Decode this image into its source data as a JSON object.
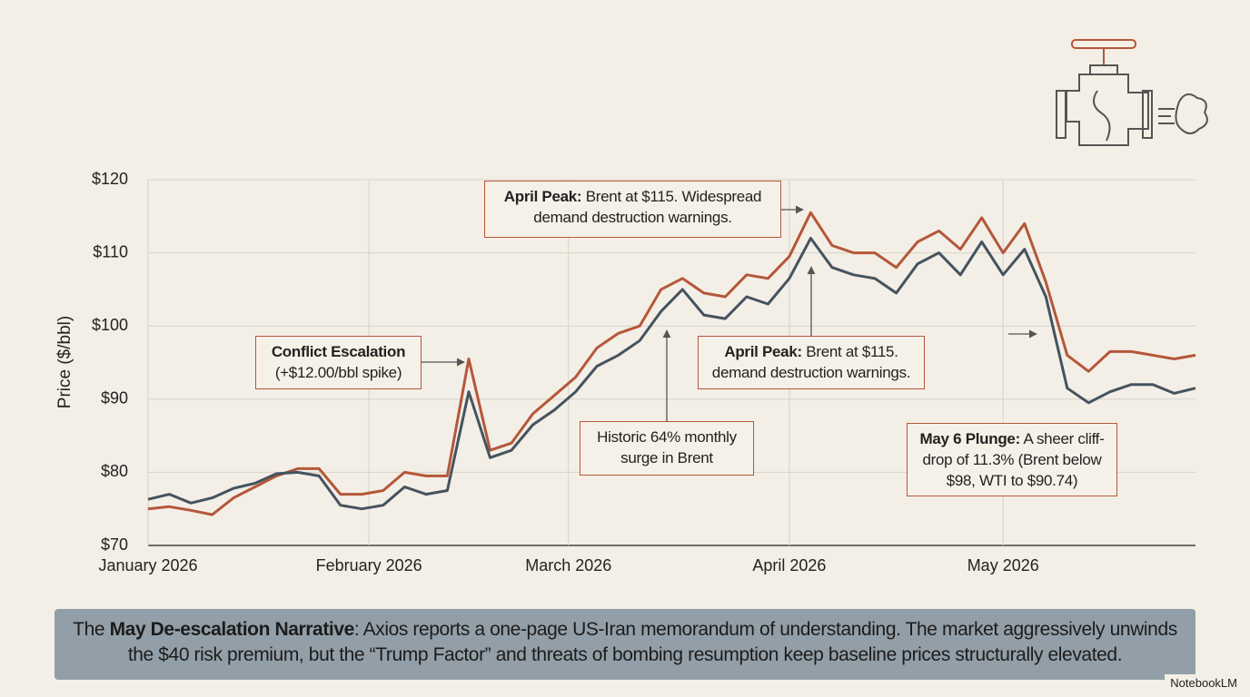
{
  "chart_data": {
    "type": "line",
    "y_label": "Price ($/bbl)",
    "x": [
      0,
      3,
      6,
      9,
      12,
      15,
      18,
      21,
      24,
      27,
      30,
      33,
      36,
      39,
      42,
      45,
      48,
      51,
      54,
      57,
      60,
      63,
      66,
      69,
      72,
      75,
      78,
      81,
      84,
      87,
      90,
      93,
      96,
      99,
      102,
      105,
      108,
      111,
      114,
      117,
      120,
      123,
      126,
      129,
      132,
      135,
      138,
      141,
      144,
      147
    ],
    "xlim": [
      0,
      147
    ],
    "xticks": [
      {
        "value": 0,
        "label": "January 2026"
      },
      {
        "value": 31,
        "label": "February 2026"
      },
      {
        "value": 59,
        "label": "March 2026"
      },
      {
        "value": 90,
        "label": "April 2026"
      },
      {
        "value": 120,
        "label": "May 2026"
      }
    ],
    "ylim": [
      70,
      120
    ],
    "yticks": [
      {
        "value": 70,
        "label": "$70"
      },
      {
        "value": 80,
        "label": "$80"
      },
      {
        "value": 90,
        "label": "$90"
      },
      {
        "value": 100,
        "label": "$100"
      },
      {
        "value": 110,
        "label": "$110"
      },
      {
        "value": 120,
        "label": "$120"
      }
    ],
    "grid": true,
    "series": [
      {
        "color": "#b5573a",
        "values": [
          75.0,
          75.3,
          74.8,
          74.2,
          76.5,
          78.0,
          79.5,
          80.5,
          80.5,
          77.0,
          77.0,
          77.5,
          80.0,
          79.5,
          79.5,
          95.5,
          83.0,
          84.0,
          88.0,
          90.5,
          93.0,
          97.0,
          99.0,
          100.0,
          105.0,
          106.5,
          104.5,
          104.0,
          107.0,
          106.5,
          109.5,
          115.5,
          111.0,
          110.0,
          110.0,
          108.0,
          111.5,
          113.0,
          110.5,
          114.8,
          110.0,
          114.0,
          106.0,
          96.0,
          93.8,
          96.5,
          96.5,
          96.0,
          95.5,
          96.0
        ]
      },
      {
        "color": "#45535f",
        "values": [
          76.3,
          77.0,
          75.8,
          76.5,
          77.8,
          78.5,
          79.8,
          80.0,
          79.5,
          75.5,
          75.0,
          75.5,
          78.0,
          77.0,
          77.5,
          91.0,
          82.0,
          83.0,
          86.5,
          88.5,
          91.0,
          94.5,
          96.0,
          98.0,
          102.0,
          105.0,
          101.5,
          101.0,
          104.0,
          103.0,
          106.5,
          112.0,
          108.0,
          107.0,
          106.5,
          104.5,
          108.5,
          110.0,
          107.0,
          111.5,
          107.0,
          110.5,
          104.0,
          91.5,
          89.5,
          91.0,
          92.0,
          92.0,
          90.8,
          91.5
        ]
      }
    ],
    "annotations": [
      {
        "lead": "Conflict Escalation",
        "text": "(+$12.00/bbl spike)"
      },
      {
        "lead": "April Peak:",
        "text": "Brent at $115. Widespread demand destruction warnings."
      },
      {
        "lead": "April Peak:",
        "text": "Brent at $115. demand destruction warnings."
      },
      {
        "text": "Historic 64% monthly surge in Brent"
      },
      {
        "lead": "May 6 Plunge:",
        "text": "A sheer cliff-drop of 11.3% (Brent below $98, WTI to $90.74)"
      }
    ],
    "caption": {
      "prefix": "The",
      "lead": "May De-escalation Narrative",
      "text": ": Axios reports a one-page US-Iran memorandum of understanding. The market aggressively unwinds the $40 risk premium, but the “Trump Factor” and threats of bombing resumption keep baseline prices structurally elevated."
    },
    "watermark": "NotebookLM"
  }
}
